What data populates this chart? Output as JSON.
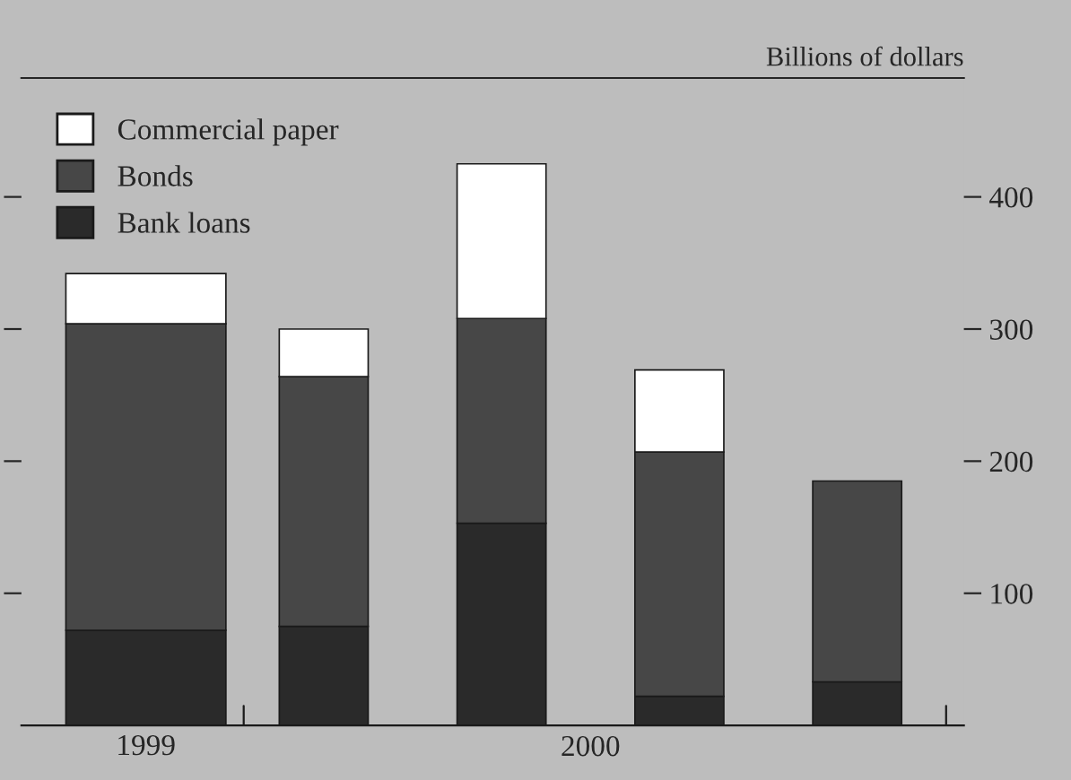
{
  "chart_data": {
    "type": "bar",
    "stacked": true,
    "ylabel": "Billions of dollars",
    "categories": [
      "1999",
      null,
      null,
      null,
      null
    ],
    "series": [
      {
        "name": "Bank loans",
        "color": "#2a2a2a",
        "values": [
          72,
          75,
          153,
          22,
          33
        ]
      },
      {
        "name": "Bonds",
        "color": "#474747",
        "values": [
          232,
          189,
          155,
          185,
          152
        ]
      },
      {
        "name": "Commercial paper",
        "color": "#ffffff",
        "values": [
          38,
          36,
          117,
          62,
          null
        ]
      }
    ],
    "ylim": [
      0,
      490
    ],
    "yticks": [
      100,
      200,
      300,
      400
    ],
    "annotations": [
      "2000"
    ],
    "legend": "top left",
    "grid": false
  }
}
